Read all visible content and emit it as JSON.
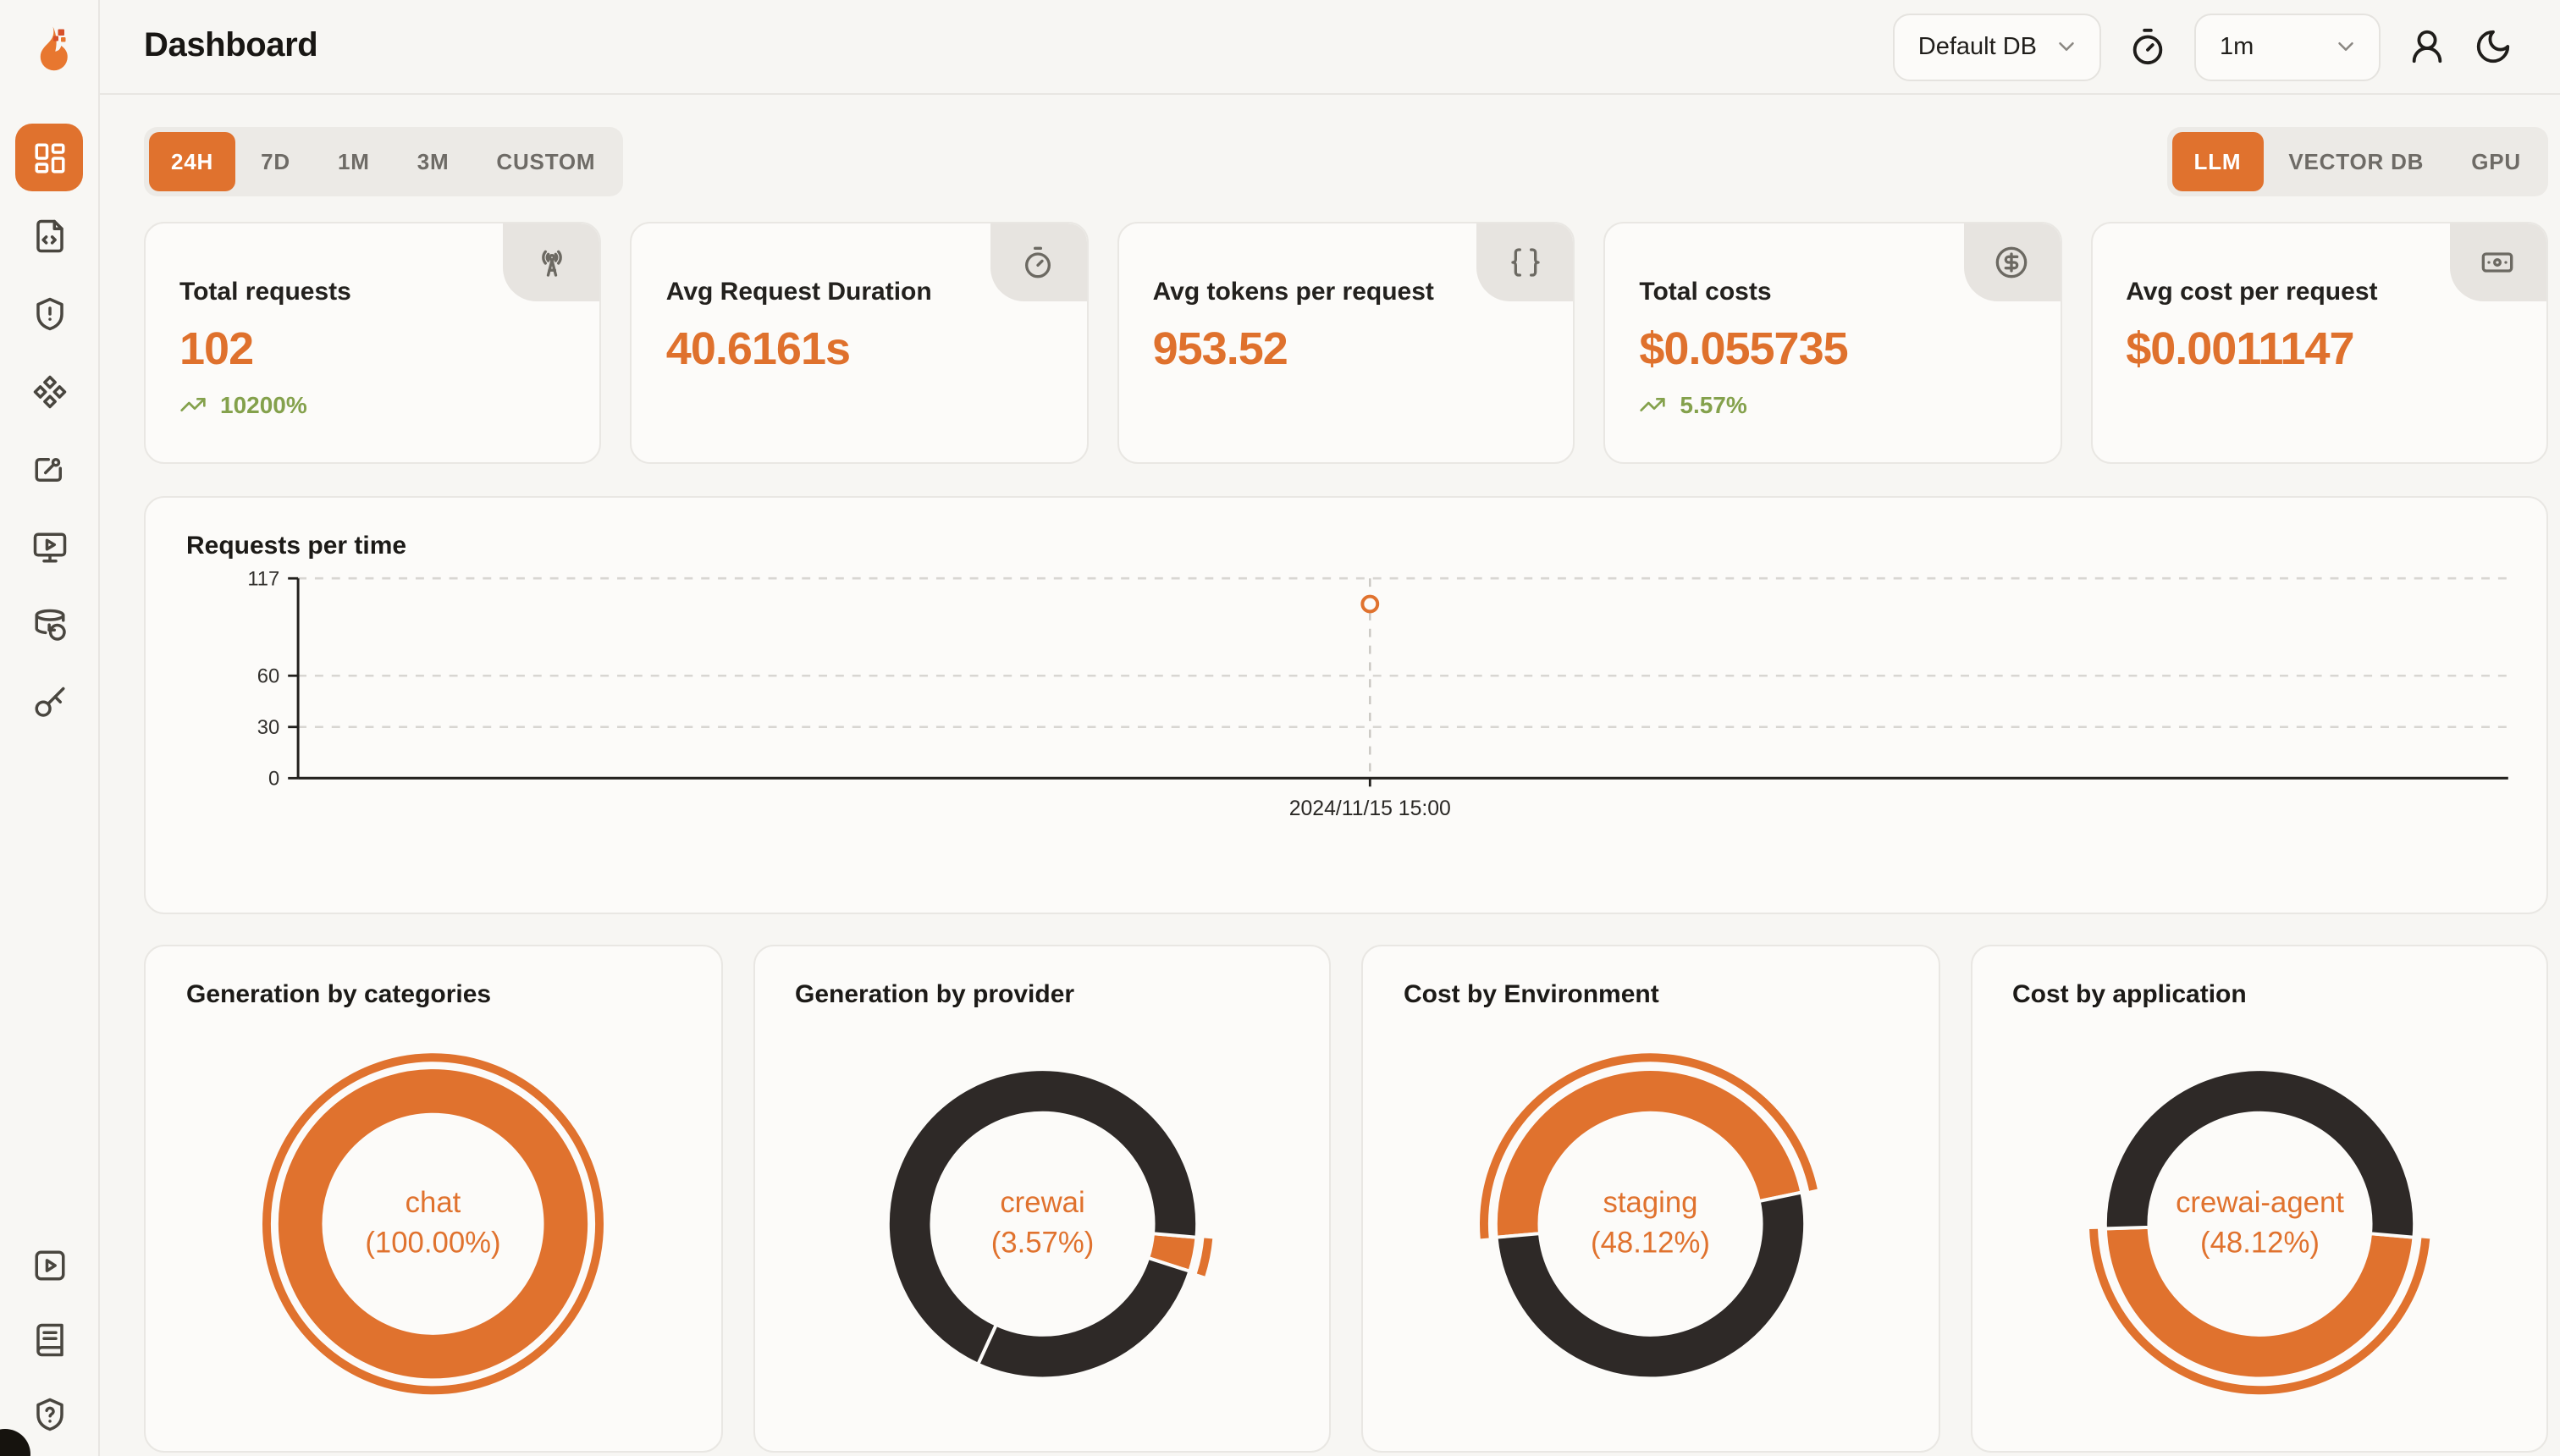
{
  "app": {
    "page_title": "Dashboard"
  },
  "topbar": {
    "database_select": {
      "value": "Default DB",
      "icon": "chevron-down"
    },
    "refresh_history_button": {
      "icon": "timer"
    },
    "refresh_interval_select": {
      "value": "1m",
      "icon": "chevron-down"
    },
    "user_button": {
      "icon": "user-round"
    },
    "theme_toggle_button": {
      "icon": "moon"
    }
  },
  "time_range_tabs": {
    "items": [
      "24H",
      "7D",
      "1M",
      "3M",
      "CUSTOM"
    ],
    "active": "24H"
  },
  "scope_tabs": {
    "items": [
      "LLM",
      "VECTOR DB",
      "GPU"
    ],
    "active": "LLM"
  },
  "stat_cards": [
    {
      "label": "Total requests",
      "value": "102",
      "trend": "10200%",
      "icon": "radio-tower"
    },
    {
      "label": "Avg Request Duration",
      "value": "40.6161s",
      "trend": null,
      "icon": "timer"
    },
    {
      "label": "Avg tokens per request",
      "value": "953.52",
      "trend": null,
      "icon": "braces"
    },
    {
      "label": "Total costs",
      "value": "$0.055735",
      "trend": "5.57%",
      "icon": "circle-dollar-sign"
    },
    {
      "label": "Avg cost per request",
      "value": "$0.0011147",
      "trend": null,
      "icon": "banknote"
    }
  ],
  "chart_data": [
    {
      "type": "line",
      "title": "Requests per time",
      "xlabel": "",
      "ylabel": "",
      "ylim": [
        0,
        117
      ],
      "yticks": [
        0,
        30,
        60,
        117
      ],
      "grid": "dashed-horizontal",
      "x_labels": [
        "2024/11/15 15:00"
      ],
      "series": [
        {
          "name": "requests",
          "values": [
            102
          ]
        }
      ],
      "point": {
        "x_label": "2024/11/15 15:00",
        "value": 102,
        "x_fraction": 0.485,
        "marker": "open-circle"
      }
    },
    {
      "type": "pie",
      "title": "Generation by categories",
      "slices": [
        {
          "label": "chat",
          "pct": 100.0
        }
      ],
      "accent_slice": 0,
      "start_angle": 0,
      "center_label": [
        "chat",
        "(100.00%)"
      ]
    },
    {
      "type": "pie",
      "title": "Generation by provider",
      "slices": [
        {
          "label": "crewai",
          "pct": 3.57
        },
        {
          "label": "",
          "pct": 26.9
        },
        {
          "label": "",
          "pct": 69.53
        }
      ],
      "accent_slice": 0,
      "start_angle": 95,
      "center_label": [
        "crewai",
        "(3.57%)"
      ]
    },
    {
      "type": "pie",
      "title": "Cost by Environment",
      "slices": [
        {
          "label": "staging",
          "pct": 48.12
        },
        {
          "label": "",
          "pct": 51.88
        }
      ],
      "accent_slice": 0,
      "start_angle": 265,
      "center_label": [
        "staging",
        "(48.12%)"
      ]
    },
    {
      "type": "pie",
      "title": "Cost by application",
      "slices": [
        {
          "label": "crewai-agent",
          "pct": 48.12
        },
        {
          "label": "",
          "pct": 51.88
        }
      ],
      "accent_slice": 0,
      "start_angle": 95,
      "center_label": [
        "crewai-agent",
        "(48.12%)"
      ]
    }
  ],
  "sidebar": {
    "items": [
      {
        "id": "dashboard",
        "icon": "layout-dashboard",
        "active": true
      },
      {
        "id": "requests",
        "icon": "file-code",
        "active": false
      },
      {
        "id": "exceptions",
        "icon": "shield-alert",
        "active": false
      },
      {
        "id": "prompts",
        "icon": "component",
        "active": false
      },
      {
        "id": "evaluations",
        "icon": "board-pen",
        "active": false
      },
      {
        "id": "playground",
        "icon": "monitor-play",
        "active": false
      },
      {
        "id": "databases",
        "icon": "database-backup",
        "active": false
      },
      {
        "id": "api-keys",
        "icon": "key",
        "active": false
      }
    ],
    "bottom_items": [
      {
        "id": "tutorials",
        "icon": "square-play"
      },
      {
        "id": "documentation",
        "icon": "book"
      },
      {
        "id": "support",
        "icon": "shield-question"
      }
    ]
  },
  "colors": {
    "accent": "#E0722E",
    "value_text": "#DF712D",
    "dark_slice": "#2E2927",
    "trend_green": "#84A14C",
    "card_bg": "#FCFBF9",
    "page_bg": "#F7F6F3",
    "border": "#E8E6E2",
    "grid_line": "#D8D6D2",
    "crosshair": "#C9C6C2",
    "axis": "#211F1C"
  }
}
